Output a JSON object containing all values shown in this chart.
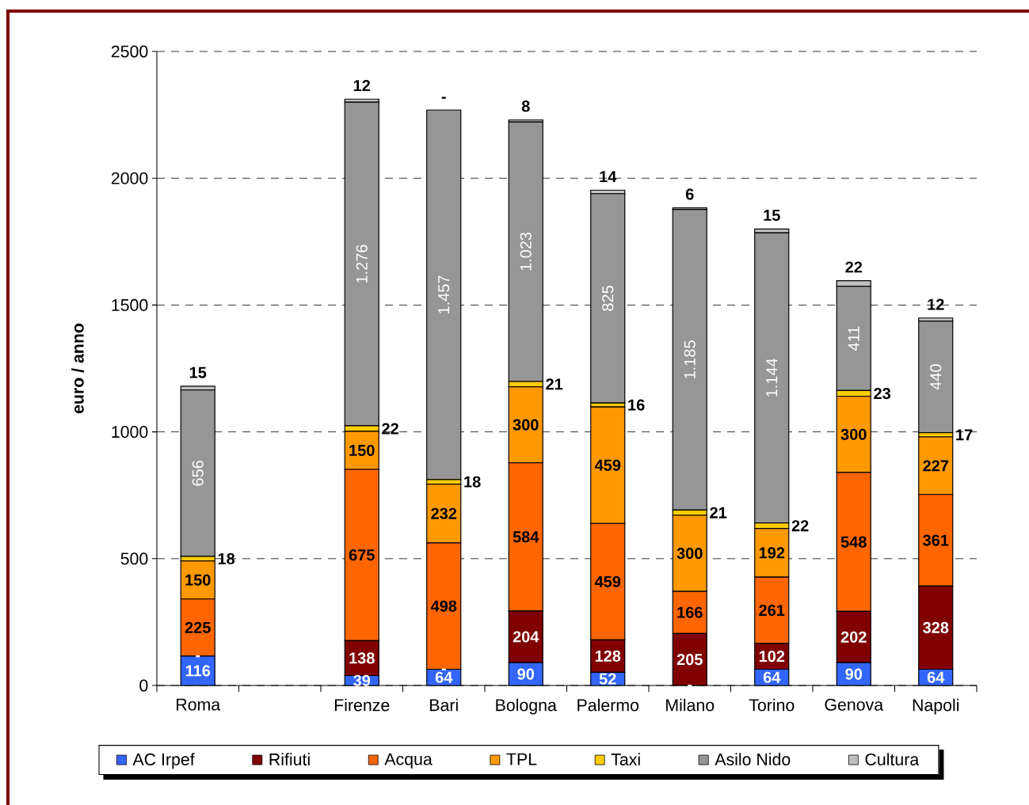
{
  "chart_data": {
    "type": "bar",
    "stacked": true,
    "ylabel": "euro / anno",
    "categories": [
      "Roma",
      null,
      "Firenze",
      "Bari",
      "Bologna",
      "Palermo",
      "Milano",
      "Torino",
      "Genova",
      "Napoli"
    ],
    "series": [
      {
        "name": "AC Irpef",
        "color": "#3366ff",
        "values": [
          116,
          null,
          39,
          64,
          90,
          52,
          null,
          64,
          90,
          64
        ],
        "value_labels": [
          "116",
          null,
          "39",
          "64",
          "90",
          "52",
          "-",
          "64",
          "90",
          "64"
        ]
      },
      {
        "name": "Rifiuti",
        "color": "#800000",
        "values": [
          null,
          null,
          138,
          null,
          204,
          128,
          205,
          102,
          202,
          328
        ],
        "value_labels": [
          "-",
          null,
          "138",
          "-",
          "204",
          "128",
          "205",
          "102",
          "202",
          "328"
        ]
      },
      {
        "name": "Acqua",
        "color": "#ff6600",
        "values": [
          225,
          null,
          675,
          498,
          584,
          459,
          166,
          261,
          548,
          361
        ],
        "value_labels": [
          "225",
          null,
          "675",
          "498",
          "584",
          "459",
          "166",
          "261",
          "548",
          "361"
        ]
      },
      {
        "name": "TPL",
        "color": "#ff9900",
        "values": [
          150,
          null,
          150,
          232,
          300,
          459,
          300,
          192,
          300,
          227
        ],
        "value_labels": [
          "150",
          null,
          "150",
          "232",
          "300",
          "459",
          "300",
          "192",
          "300",
          "227"
        ]
      },
      {
        "name": "Taxi",
        "color": "#ffcc00",
        "values": [
          18,
          null,
          22,
          18,
          21,
          16,
          21,
          22,
          23,
          17
        ],
        "value_labels": [
          "18",
          null,
          "22",
          "18",
          "21",
          "16",
          "21",
          "22",
          "23",
          "17"
        ]
      },
      {
        "name": "Asilo Nido",
        "color": "#969696",
        "values": [
          656,
          null,
          1276,
          1457,
          1023,
          825,
          1185,
          1144,
          411,
          440
        ],
        "value_labels": [
          "656",
          null,
          "1.276",
          "1.457",
          "1.023",
          "825",
          "1.185",
          "1.144",
          "411",
          "440"
        ]
      },
      {
        "name": "Cultura",
        "color": "#c0c0c0",
        "values": [
          15,
          null,
          12,
          null,
          8,
          14,
          6,
          15,
          22,
          12
        ],
        "value_labels": [
          "15",
          null,
          "12",
          "-",
          "8",
          "14",
          "6",
          "15",
          "22",
          "12"
        ]
      }
    ],
    "ylim": [
      0,
      2500
    ],
    "yticks": [
      0,
      500,
      1000,
      1500,
      2000,
      2500
    ],
    "grid": "y",
    "legend": "bottom"
  }
}
